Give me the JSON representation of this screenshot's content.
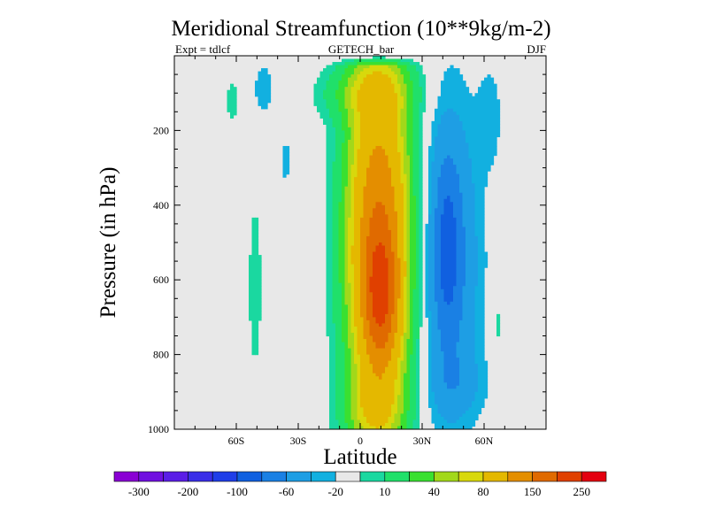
{
  "chart_data": {
    "type": "contour",
    "title": "Meridional Streamfunction (10**9kg/m-2)",
    "subtitle_left": "Expt = tdlcf",
    "subtitle_center": "GETECH_bar",
    "subtitle_right": "DJF",
    "xlabel": "Latitude",
    "ylabel": "Pressure (in hPa)",
    "xlim": [
      -90,
      90
    ],
    "ylim": [
      1000,
      0
    ],
    "x_ticks": [
      {
        "value": -60,
        "label": "60S"
      },
      {
        "value": -30,
        "label": "30S"
      },
      {
        "value": 0,
        "label": "0"
      },
      {
        "value": 30,
        "label": "30N"
      },
      {
        "value": 60,
        "label": "60N"
      }
    ],
    "y_ticks": [
      {
        "value": 200,
        "label": "200"
      },
      {
        "value": 400,
        "label": "400"
      },
      {
        "value": 600,
        "label": "600"
      },
      {
        "value": 800,
        "label": "800"
      },
      {
        "value": 1000,
        "label": "1000"
      }
    ],
    "levels": [
      -300,
      -250,
      -200,
      -150,
      -100,
      -80,
      -60,
      -40,
      -20,
      -10,
      10,
      20,
      40,
      60,
      80,
      100,
      150,
      200,
      250,
      300
    ],
    "colorbar_labels": [
      "-300",
      "-200",
      "-100",
      "-60",
      "-20",
      "10",
      "40",
      "80",
      "150",
      "250"
    ],
    "colors": [
      "#8a00d4",
      "#7010e0",
      "#5a1ee6",
      "#3a2ee8",
      "#1f3ee8",
      "#1060e0",
      "#1a80e4",
      "#1e9ee4",
      "#12b0e0",
      "#e8e8e8",
      "#1ad8a0",
      "#20e06a",
      "#3ae030",
      "#a2d81a",
      "#d8d80c",
      "#e4b800",
      "#e48e00",
      "#e06a00",
      "#e04000",
      "#e40010"
    ],
    "missing_color": "#e8e8e8"
  }
}
